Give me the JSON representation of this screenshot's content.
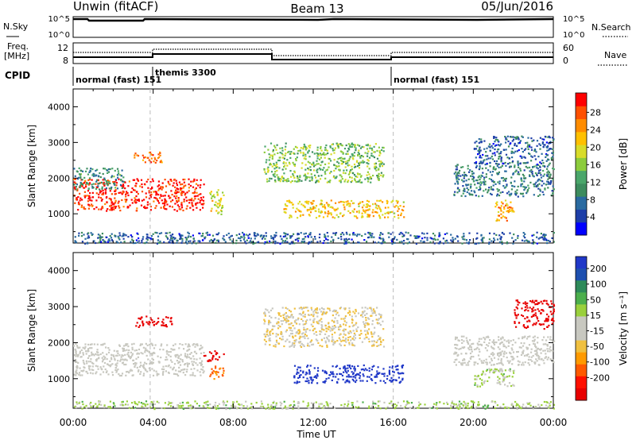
{
  "header": {
    "radar": "Unwin (fitACF)",
    "beam": "Beam 13",
    "date": "05/Jun/2016"
  },
  "top_panels": {
    "nsky": {
      "label": "N.Sky",
      "ticks": [
        "10^5",
        "10^0"
      ]
    },
    "nsearch": {
      "label": "N.Search",
      "ticks": [
        "10^5",
        "10^0"
      ]
    },
    "freq": {
      "label_line1": "Freq.",
      "label_line2": "[MHz]",
      "ticks": [
        "12",
        "8"
      ]
    },
    "nave": {
      "label": "Nave",
      "ticks": [
        "60",
        "0"
      ]
    },
    "cpid": {
      "label": "CPID",
      "segments": [
        {
          "start_hour": 0,
          "end_hour": 3.85,
          "name": "normal (fast) 151"
        },
        {
          "start_hour": 3.85,
          "end_hour": 16,
          "name": "themis 3300"
        },
        {
          "start_hour": 16,
          "end_hour": 24,
          "name": "normal (fast) 151"
        }
      ]
    }
  },
  "x_axis": {
    "title": "Time UT",
    "ticks": [
      "00:00",
      "04:00",
      "08:00",
      "12:00",
      "16:00",
      "20:00",
      "00:00"
    ]
  },
  "colorbars": {
    "power": {
      "title": "Power [dB]",
      "ticks": [
        "28",
        "24",
        "20",
        "16",
        "12",
        "8",
        "4"
      ],
      "colors": [
        "#0000ff",
        "#1e3fa8",
        "#2a6aa0",
        "#3d8c5e",
        "#4aa66a",
        "#8ccc3c",
        "#d8dc2a",
        "#ffc000",
        "#ff8c00",
        "#ff5000",
        "#ff0000"
      ]
    },
    "velocity": {
      "title": "Velocity [m s⁻¹]",
      "ticks": [
        "200",
        "100",
        "50",
        "15",
        "-15",
        "-50",
        "-100",
        "-200"
      ],
      "colors": [
        "#2038c8",
        "#1e50b0",
        "#2e8a5a",
        "#4caf4c",
        "#9ad03c",
        "#c8c8c0",
        "#c8c8c0",
        "#f0c040",
        "#ff9a00",
        "#ff5a00",
        "#ff1000",
        "#e80000"
      ]
    }
  },
  "chart_data": [
    {
      "type": "heatmap",
      "title": "Power",
      "xlabel": "Time UT",
      "ylabel": "Slant Range [km]",
      "x_unit": "hours UT",
      "xlim": [
        0,
        24
      ],
      "ylim": [
        180,
        4500
      ],
      "yticks": [
        1000,
        2000,
        3000,
        4000
      ],
      "colorbar_label": "Power [dB]",
      "clim": [
        0,
        30
      ],
      "regions": [
        {
          "t0": 0.0,
          "t1": 6.5,
          "r0": 1100,
          "r1": 2000,
          "value": 28
        },
        {
          "t0": 0.0,
          "t1": 2.5,
          "r0": 1700,
          "r1": 2300,
          "value": 10
        },
        {
          "t0": 3.0,
          "t1": 4.5,
          "r0": 2450,
          "r1": 2750,
          "value": 24
        },
        {
          "t0": 6.8,
          "t1": 7.5,
          "r0": 1000,
          "r1": 1700,
          "value": 18
        },
        {
          "t0": 9.5,
          "t1": 15.5,
          "r0": 1900,
          "r1": 3000,
          "value": 14
        },
        {
          "t0": 10.5,
          "t1": 16.5,
          "r0": 900,
          "r1": 1400,
          "value": 20
        },
        {
          "t0": 19.0,
          "t1": 24.0,
          "r0": 1500,
          "r1": 2400,
          "value": 8
        },
        {
          "t0": 20.0,
          "t1": 24.0,
          "r0": 2400,
          "r1": 3200,
          "value": 6
        },
        {
          "t0": 21.0,
          "t1": 22.0,
          "r0": 800,
          "r1": 1400,
          "value": 22
        },
        {
          "t0": 0.0,
          "t1": 24.0,
          "r0": 180,
          "r1": 500,
          "value": 6
        }
      ]
    },
    {
      "type": "heatmap",
      "title": "Velocity",
      "xlabel": "Time UT",
      "ylabel": "Slant Range [km]",
      "x_unit": "hours UT",
      "xlim": [
        0,
        24
      ],
      "ylim": [
        180,
        4500
      ],
      "yticks": [
        1000,
        2000,
        3000,
        4000
      ],
      "colorbar_label": "Velocity [m s⁻¹]",
      "clim": [
        -200,
        200
      ],
      "regions": [
        {
          "t0": 0.0,
          "t1": 6.5,
          "r0": 1100,
          "r1": 2000,
          "value": 0
        },
        {
          "t0": 3.0,
          "t1": 5.0,
          "r0": 2450,
          "r1": 2750,
          "value": -200
        },
        {
          "t0": 6.5,
          "t1": 7.5,
          "r0": 1500,
          "r1": 1800,
          "value": -200
        },
        {
          "t0": 6.8,
          "t1": 7.5,
          "r0": 1000,
          "r1": 1400,
          "value": -100
        },
        {
          "t0": 9.5,
          "t1": 15.5,
          "r0": 1900,
          "r1": 3000,
          "value": -30
        },
        {
          "t0": 11.0,
          "t1": 16.5,
          "r0": 900,
          "r1": 1400,
          "value": 200
        },
        {
          "t0": 19.0,
          "t1": 24.0,
          "r0": 1400,
          "r1": 2200,
          "value": 0
        },
        {
          "t0": 22.0,
          "t1": 24.0,
          "r0": 2400,
          "r1": 3200,
          "value": -200
        },
        {
          "t0": 20.0,
          "t1": 22.0,
          "r0": 800,
          "r1": 1300,
          "value": 40
        },
        {
          "t0": 0.0,
          "t1": 24.0,
          "r0": 180,
          "r1": 400,
          "value": 40
        }
      ]
    }
  ]
}
